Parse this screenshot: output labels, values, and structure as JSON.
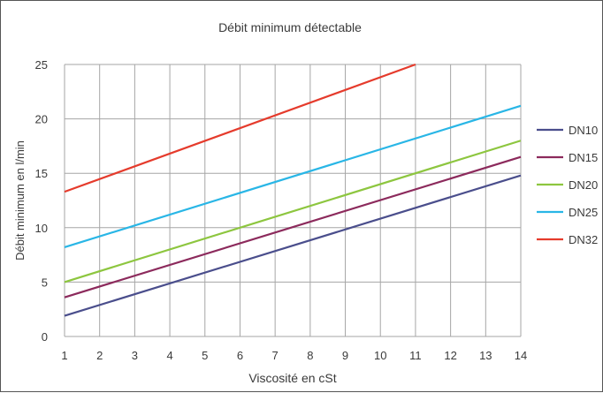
{
  "chart_data": {
    "type": "line",
    "title": "Débit minimum détectable",
    "xlabel": "Viscosité en cSt",
    "ylabel": "Débit minimum en l/min",
    "xlim": [
      1,
      14
    ],
    "ylim": [
      0,
      25
    ],
    "x_ticks": [
      1,
      2,
      3,
      4,
      5,
      6,
      7,
      8,
      9,
      10,
      11,
      12,
      13,
      14
    ],
    "y_ticks": [
      0,
      5,
      10,
      15,
      20,
      25
    ],
    "grid": true,
    "legend_position": "right",
    "series": [
      {
        "name": "DN10",
        "color": "#4a4e8c",
        "points": [
          [
            1,
            1.9
          ],
          [
            14,
            14.8
          ]
        ]
      },
      {
        "name": "DN15",
        "color": "#8c2a5c",
        "points": [
          [
            1,
            3.6
          ],
          [
            14,
            16.5
          ]
        ]
      },
      {
        "name": "DN20",
        "color": "#8dc63f",
        "points": [
          [
            1,
            5.0
          ],
          [
            14,
            18.0
          ]
        ]
      },
      {
        "name": "DN25",
        "color": "#29b6e6",
        "points": [
          [
            1,
            8.2
          ],
          [
            14,
            21.2
          ]
        ]
      },
      {
        "name": "DN32",
        "color": "#e53b2c",
        "points": [
          [
            1,
            13.3
          ],
          [
            11,
            25.0
          ]
        ]
      }
    ]
  }
}
